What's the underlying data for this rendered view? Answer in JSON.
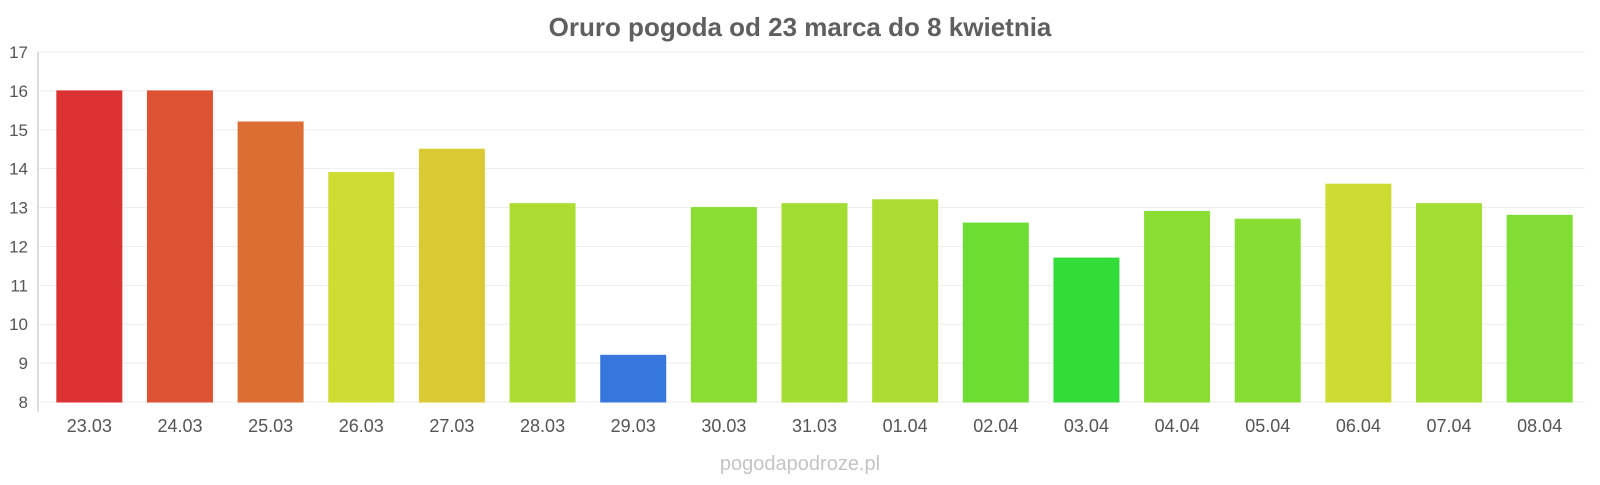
{
  "chart_data": {
    "type": "bar",
    "title": "Oruro pogoda od 23 marca do 8 kwietnia",
    "xlabel": "",
    "ylabel": "",
    "ylim": [
      8,
      17
    ],
    "yticks": [
      8,
      9,
      10,
      11,
      12,
      13,
      14,
      15,
      16,
      17
    ],
    "grid": true,
    "categories": [
      "23.03",
      "24.03",
      "25.03",
      "26.03",
      "27.03",
      "28.03",
      "29.03",
      "30.03",
      "31.03",
      "01.04",
      "02.04",
      "03.04",
      "04.04",
      "05.04",
      "06.04",
      "07.04",
      "08.04"
    ],
    "values": [
      16.0,
      16.0,
      15.2,
      13.9,
      14.5,
      13.1,
      9.2,
      13.0,
      13.1,
      13.2,
      12.6,
      11.7,
      12.9,
      12.7,
      13.6,
      13.1,
      12.8
    ],
    "colors": [
      "#db3333",
      "#dd5233",
      "#dd6e33",
      "#cfdc33",
      "#dbc933",
      "#addd33",
      "#3777dd",
      "#8bdd33",
      "#a1dd33",
      "#addd33",
      "#6bdd33",
      "#33dd39",
      "#8bdd33",
      "#87dd33",
      "#cddc33",
      "#a4dd33",
      "#7fdd33"
    ]
  },
  "source_label": "pogodapodroze.pl"
}
